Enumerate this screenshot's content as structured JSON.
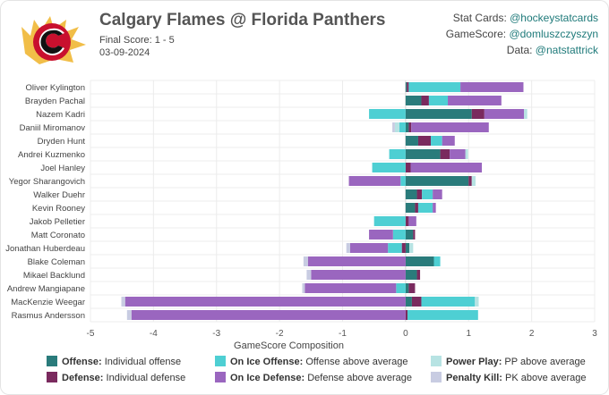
{
  "header": {
    "title": "Calgary Flames @ Florida Panthers",
    "score": "Final Score: 1 - 5",
    "date": "03-09-2024",
    "credits": [
      {
        "label": "Stat Cards: ",
        "handle": "@hockeystatcards"
      },
      {
        "label": "GameScore: ",
        "handle": "@domluszczyszyn"
      },
      {
        "label": "Data: ",
        "handle": "@natstattrick"
      }
    ]
  },
  "colors": {
    "offense": "#2a7b7b",
    "defense": "#7a2a5e",
    "on_ice_offense": "#4ecfd3",
    "on_ice_defense": "#9a66bf",
    "power_play": "#b7e3e3",
    "penalty_kill": "#c8cce2",
    "logo_red": "#c8102e",
    "logo_gold": "#f1be48"
  },
  "legend": [
    {
      "name": "Offense:",
      "desc": "Individual offense",
      "color_key": "offense"
    },
    {
      "name": "On Ice Offense:",
      "desc": "Offense above average",
      "color_key": "on_ice_offense"
    },
    {
      "name": "Power Play:",
      "desc": "PP above average",
      "color_key": "power_play"
    },
    {
      "name": "Defense:",
      "desc": "Individual defense",
      "color_key": "defense"
    },
    {
      "name": "On Ice Defense:",
      "desc": "Defense above average",
      "color_key": "on_ice_defense"
    },
    {
      "name": "Penalty Kill:",
      "desc": "PK above average",
      "color_key": "penalty_kill"
    }
  ],
  "chart_data": {
    "type": "bar",
    "orientation": "horizontal",
    "stacked": true,
    "xlabel": "GameScore Composition",
    "xlim": [
      -5,
      3
    ],
    "xticks": [
      -5,
      -4,
      -3,
      -2,
      -1,
      0,
      1,
      2,
      3
    ],
    "grid": true,
    "legend_position": "bottom",
    "categories": [
      "Oliver Kylington",
      "Brayden Pachal",
      "Nazem Kadri",
      "Daniil Miromanov",
      "Dryden Hunt",
      "Andrei Kuzmenko",
      "Joel Hanley",
      "Yegor Sharangovich",
      "Walker Duehr",
      "Kevin Rooney",
      "Jakob Pelletier",
      "Matt Coronato",
      "Jonathan Huberdeau",
      "Blake Coleman",
      "Mikael Backlund",
      "Andrew Mangiapane",
      "MacKenzie Weegar",
      "Rasmus Andersson"
    ],
    "series": [
      {
        "name": "Offense",
        "color_key": "offense",
        "values": [
          0.02,
          0.25,
          1.05,
          0.05,
          0.2,
          0.55,
          0.0,
          1.0,
          0.18,
          0.15,
          0.0,
          0.12,
          0.06,
          0.45,
          0.18,
          0.05,
          0.1,
          0.0
        ]
      },
      {
        "name": "Defense",
        "color_key": "defense",
        "values": [
          0.03,
          0.12,
          0.2,
          0.04,
          0.2,
          0.15,
          0.08,
          0.05,
          0.08,
          0.05,
          0.05,
          0.03,
          -0.06,
          0.0,
          0.05,
          0.08,
          0.15,
          0.03
        ]
      },
      {
        "name": "On Ice Offense",
        "color_key": "on_ice_offense",
        "values": [
          0.82,
          0.3,
          -0.58,
          -0.1,
          0.18,
          -0.26,
          -0.53,
          -0.08,
          0.17,
          0.23,
          -0.5,
          -0.2,
          -0.22,
          0.1,
          0.0,
          -0.15,
          0.85,
          1.12
        ]
      },
      {
        "name": "Defense (lower)",
        "color_key": "defense",
        "values": [
          0.0,
          0.0,
          0.0,
          0.0,
          0.0,
          0.0,
          0.0,
          0.0,
          0.0,
          0.0,
          0.0,
          0.0,
          0.0,
          0.0,
          0.0,
          0.02,
          0.0,
          0.0
        ]
      },
      {
        "name": "On Ice Defense",
        "color_key": "on_ice_defense",
        "values": [
          1.0,
          0.85,
          0.63,
          1.23,
          0.2,
          0.25,
          1.13,
          -0.82,
          0.15,
          0.05,
          0.12,
          -0.38,
          -0.6,
          -1.55,
          -1.5,
          -1.45,
          -4.45,
          -4.35
        ]
      },
      {
        "name": "Power Play",
        "color_key": "power_play",
        "values": [
          0.0,
          0.0,
          0.05,
          -0.07,
          0.0,
          0.04,
          0.0,
          0.06,
          0.0,
          0.0,
          0.0,
          0.0,
          0.06,
          0.0,
          0.0,
          0.0,
          0.06,
          0.0
        ]
      },
      {
        "name": "Penalty Kill",
        "color_key": "penalty_kill",
        "values": [
          0.0,
          0.0,
          0.0,
          -0.04,
          0.0,
          0.0,
          0.0,
          0.0,
          0.0,
          0.0,
          0.0,
          0.0,
          -0.06,
          -0.07,
          -0.07,
          -0.04,
          -0.06,
          -0.07
        ]
      }
    ]
  }
}
